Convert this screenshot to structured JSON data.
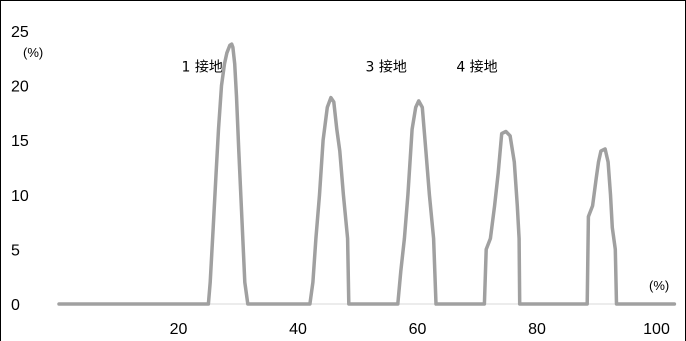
{
  "chart_data": {
    "type": "line",
    "title": "",
    "xlabel": "",
    "ylabel": "",
    "x_unit": "(%)",
    "y_unit": "(%)",
    "xlim": [
      0,
      104
    ],
    "ylim": [
      0,
      25
    ],
    "x_ticks": [
      20,
      40,
      60,
      80,
      100
    ],
    "y_ticks": [
      0,
      5,
      10,
      15,
      20,
      25
    ],
    "grid": false,
    "line_color": "#a0a0a0",
    "annotations": [
      {
        "text": "1 接地",
        "x": 20.5,
        "y": 21.3
      },
      {
        "text": "3 接地",
        "x": 51.3,
        "y": 21.3
      },
      {
        "text": "4 接地",
        "x": 66.5,
        "y": 21.3
      }
    ],
    "series": [
      {
        "x": [
          0,
          25,
          25.3,
          25.8,
          26.3,
          26.7,
          27.2,
          27.7,
          28.1,
          28.6,
          28.9,
          29.1,
          29.4,
          29.7,
          30.1,
          30.6,
          31.1,
          31.6,
          32.1,
          32.4,
          42,
          42.5,
          43.0,
          43.6,
          44.2,
          44.9,
          45.5,
          46.0,
          46.5,
          47.0,
          47.6,
          48.3,
          48.5,
          56.7,
          57.2,
          57.8,
          58.4,
          59.1,
          59.7,
          60.2,
          60.8,
          61.4,
          62.0,
          62.7,
          63.1,
          71.2,
          71.5,
          72.2,
          72.9,
          73.5,
          74.1,
          74.8,
          75.5,
          76.2,
          76.7,
          77.0,
          77.1,
          88.4,
          88.6,
          89.3,
          89.9,
          90.3,
          90.7,
          91.4,
          91.9,
          92.3,
          92.6,
          93.1,
          93.3,
          103
        ]
      },
      {
        "y": [
          0,
          0,
          2,
          7,
          12,
          16,
          20,
          22,
          23,
          23.7,
          23.8,
          23.5,
          22,
          19,
          14,
          8,
          2,
          0,
          0,
          0,
          0,
          2,
          6,
          10,
          15,
          18,
          18.9,
          18.5,
          16,
          14,
          10,
          6,
          0,
          0,
          3,
          6,
          10,
          16,
          18,
          18.6,
          18,
          14,
          10,
          6,
          0,
          0,
          5,
          6,
          9,
          12,
          15.6,
          15.8,
          15.4,
          13,
          9,
          6,
          0,
          0,
          8,
          9,
          11.5,
          13,
          14,
          14.2,
          13,
          10,
          7,
          5,
          0,
          0
        ]
      }
    ]
  }
}
